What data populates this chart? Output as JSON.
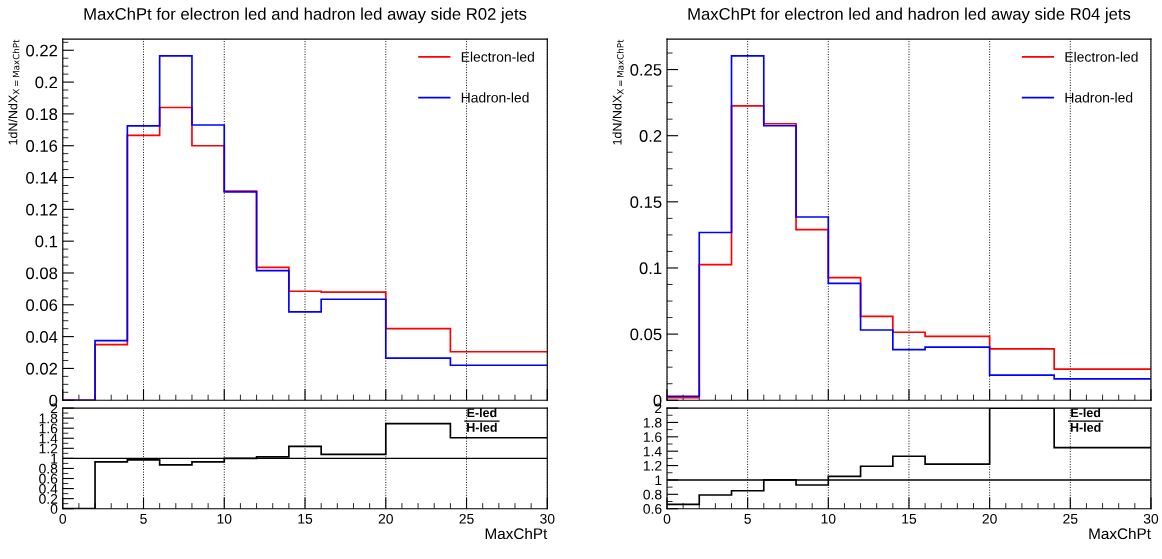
{
  "chart_data": [
    {
      "type": "histogram",
      "title": "MaxChPt for electron led and hadron led away side R02 jets",
      "ylabel": "1dN/NdX$_{X=MaxChPt}$",
      "bins": [
        0,
        2,
        4,
        6,
        8,
        10,
        12,
        14,
        16,
        20,
        24,
        30
      ],
      "series": [
        {
          "name": "Electron-led",
          "color": "#ff0000",
          "values": [
            0,
            0.035,
            0.1665,
            0.184,
            0.16,
            0.1315,
            0.0835,
            0.0685,
            0.068,
            0.045,
            0.0305
          ]
        },
        {
          "name": "Hadron-led",
          "color": "#0000ff",
          "values": [
            0,
            0.0375,
            0.1725,
            0.2165,
            0.173,
            0.131,
            0.0815,
            0.0555,
            0.0635,
            0.0265,
            0.022
          ]
        }
      ],
      "xlim": [
        0,
        30
      ],
      "xticks": [
        0,
        5,
        10,
        15,
        20,
        25,
        30
      ],
      "ylim": [
        0,
        0.227
      ],
      "yticks": [
        0,
        0.02,
        0.04,
        0.06,
        0.08,
        0.1,
        0.12,
        0.14,
        0.16,
        0.18,
        0.2,
        0.22
      ],
      "tick_labels": "y",
      "grid": "x",
      "legend": "top right"
    },
    {
      "type": "histogram",
      "xlabel": "MaxChPt",
      "annotations": [
        "E-led",
        "H-led"
      ],
      "bins": [
        0,
        2,
        4,
        6,
        8,
        10,
        12,
        14,
        16,
        20,
        24,
        30
      ],
      "series": [
        {
          "color": "#000000",
          "values": [
            0,
            0.93,
            0.97,
            0.87,
            0.93,
            1.0,
            1.03,
            1.24,
            1.08,
            1.69,
            1.41
          ]
        }
      ],
      "ref_lines": [
        {
          "axis": "y",
          "value": 1,
          "color": "#000000"
        }
      ],
      "xlim": [
        0,
        30
      ],
      "xticks": [
        0,
        5,
        10,
        15,
        20,
        25,
        30
      ],
      "ylim": [
        0,
        2
      ],
      "yticks": [
        0,
        0.2,
        0.4,
        0.6,
        0.8,
        1,
        1.2,
        1.4,
        1.6,
        1.8,
        2
      ],
      "grid": "x"
    },
    {
      "type": "histogram",
      "title": "MaxChPt for electron led and hadron led away side R04 jets",
      "ylabel": "1dN/NdX$_{X=MaxChPt}$",
      "bins": [
        0,
        2,
        4,
        6,
        8,
        10,
        12,
        14,
        16,
        20,
        24,
        30
      ],
      "series": [
        {
          "name": "Electron-led",
          "color": "#ff0000",
          "values": [
            0.002,
            0.1025,
            0.2226,
            0.209,
            0.129,
            0.0927,
            0.0634,
            0.0514,
            0.0483,
            0.0388,
            0.0235
          ]
        },
        {
          "name": "Hadron-led",
          "color": "#0000ff",
          "values": [
            0.003,
            0.1268,
            0.2603,
            0.2075,
            0.1385,
            0.0883,
            0.0531,
            0.0383,
            0.0402,
            0.019,
            0.0162
          ]
        }
      ],
      "xlim": [
        0,
        30
      ],
      "xticks": [
        0,
        5,
        10,
        15,
        20,
        25,
        30
      ],
      "ylim": [
        0,
        0.273
      ],
      "yticks": [
        0,
        0.05,
        0.1,
        0.15,
        0.2,
        0.25
      ],
      "tick_labels": "y",
      "grid": "x",
      "legend": "top right"
    },
    {
      "type": "histogram",
      "xlabel": "MaxChPt",
      "annotations": [
        "E-led",
        "H-led"
      ],
      "bins": [
        0,
        2,
        4,
        6,
        8,
        10,
        12,
        14,
        16,
        20,
        24,
        30
      ],
      "series": [
        {
          "color": "#000000",
          "values": [
            0.66,
            0.79,
            0.85,
            1.0,
            0.93,
            1.05,
            1.19,
            1.33,
            1.22,
            2,
            1.45
          ]
        }
      ],
      "ref_lines": [
        {
          "axis": "y",
          "value": 1,
          "color": "#000000"
        }
      ],
      "xlim": [
        0,
        30
      ],
      "xticks": [
        0,
        5,
        10,
        15,
        20,
        25,
        30
      ],
      "ylim": [
        0.6,
        2
      ],
      "yticks": [
        0.6,
        0.8,
        1,
        1.2,
        1.4,
        1.6,
        1.8,
        2
      ],
      "grid": "x"
    }
  ]
}
